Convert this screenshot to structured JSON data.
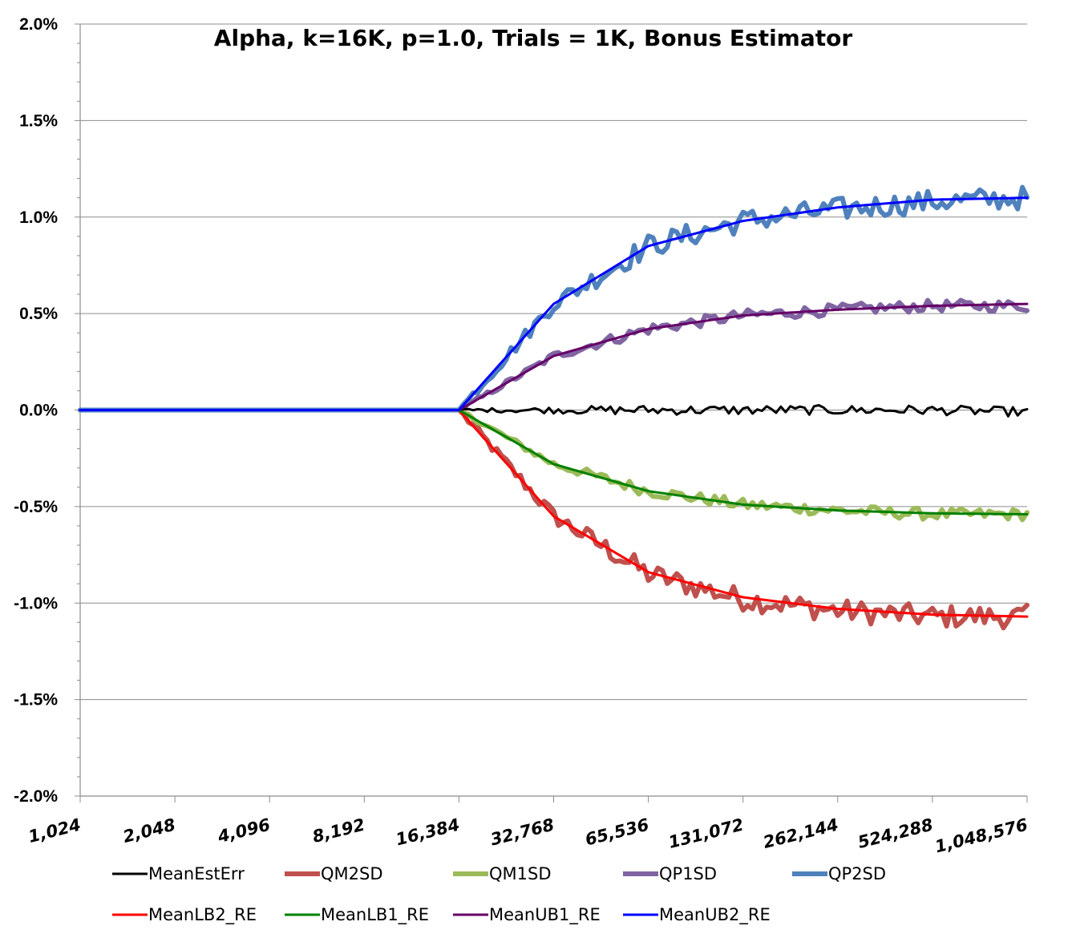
{
  "chart_data": {
    "type": "line",
    "title": "Alpha, k=16K, p=1.0, Trials = 1K, Bonus Estimator",
    "xlabel": "",
    "ylabel": "",
    "x_scale": "log2",
    "x_ticks": [
      1024,
      2048,
      4096,
      8192,
      16384,
      32768,
      65536,
      131072,
      262144,
      524288,
      1048576
    ],
    "x_tick_labels": [
      "1,024",
      "2,048",
      "4,096",
      "8,192",
      "16,384",
      "32,768",
      "65,536",
      "131,072",
      "262,144",
      "524,288",
      "1,048,576"
    ],
    "xlim": [
      1024,
      1048576
    ],
    "y_ticks": [
      2.0,
      1.5,
      1.0,
      0.5,
      0.0,
      -0.5,
      -1.0,
      -1.5,
      -2.0
    ],
    "y_tick_labels": [
      "2.0%",
      "1.5%",
      "1.0%",
      "0.5%",
      "0.0%",
      "-0.5%",
      "-1.0%",
      "-1.5%",
      "-2.0%"
    ],
    "ylim": [
      -2.0,
      2.0
    ],
    "y_unit": "%",
    "grid": "horizontal",
    "legend_position": "bottom",
    "series": [
      {
        "name": "MeanEstErr",
        "color": "#000000",
        "style": "thin",
        "x": [
          1024,
          16384,
          32768,
          65536,
          131072,
          262144,
          524288,
          1048576
        ],
        "y": [
          0.0,
          0.0,
          0.0,
          0.0,
          0.0,
          0.0,
          0.0,
          -0.01
        ],
        "noise": 0.025
      },
      {
        "name": "QM2SD",
        "color": "#c0504d",
        "style": "thick",
        "x": [
          1024,
          16384,
          32768,
          65536,
          131072,
          262144,
          524288,
          1048576
        ],
        "y": [
          0.0,
          0.0,
          -0.55,
          -0.85,
          -0.98,
          -1.04,
          -1.07,
          -1.07
        ],
        "noise": 0.06
      },
      {
        "name": "QM1SD",
        "color": "#9bbb59",
        "style": "thick",
        "x": [
          1024,
          16384,
          32768,
          65536,
          131072,
          262144,
          524288,
          1048576
        ],
        "y": [
          0.0,
          0.0,
          -0.28,
          -0.42,
          -0.49,
          -0.52,
          -0.54,
          -0.54
        ],
        "noise": 0.03
      },
      {
        "name": "QP1SD",
        "color": "#8064a2",
        "style": "thick",
        "x": [
          1024,
          16384,
          32768,
          65536,
          131072,
          262144,
          524288,
          1048576
        ],
        "y": [
          0.0,
          0.0,
          0.28,
          0.42,
          0.49,
          0.52,
          0.54,
          0.54
        ],
        "noise": 0.03
      },
      {
        "name": "QP2SD",
        "color": "#4f81bd",
        "style": "thick",
        "x": [
          1024,
          16384,
          32768,
          65536,
          131072,
          262144,
          524288,
          1048576
        ],
        "y": [
          0.0,
          0.0,
          0.55,
          0.85,
          0.98,
          1.04,
          1.08,
          1.1
        ],
        "noise": 0.06
      },
      {
        "name": "MeanLB2_RE",
        "color": "#ff0000",
        "style": "thin-smooth",
        "x": [
          1024,
          16384,
          32768,
          65536,
          131072,
          262144,
          524288,
          1048576
        ],
        "y": [
          0.0,
          0.0,
          -0.55,
          -0.84,
          -0.97,
          -1.03,
          -1.06,
          -1.07
        ]
      },
      {
        "name": "MeanLB1_RE",
        "color": "#008000",
        "style": "thin-smooth",
        "x": [
          1024,
          16384,
          32768,
          65536,
          131072,
          262144,
          524288,
          1048576
        ],
        "y": [
          0.0,
          0.0,
          -0.28,
          -0.42,
          -0.49,
          -0.52,
          -0.535,
          -0.54
        ]
      },
      {
        "name": "MeanUB1_RE",
        "color": "#660066",
        "style": "thin-smooth",
        "x": [
          1024,
          16384,
          32768,
          65536,
          131072,
          262144,
          524288,
          1048576
        ],
        "y": [
          0.0,
          0.0,
          0.28,
          0.42,
          0.49,
          0.52,
          0.54,
          0.55
        ]
      },
      {
        "name": "MeanUB2_RE",
        "color": "#0000ff",
        "style": "thin-smooth",
        "x": [
          1024,
          16384,
          32768,
          65536,
          131072,
          262144,
          524288,
          1048576
        ],
        "y": [
          0.0,
          0.0,
          0.55,
          0.85,
          0.98,
          1.05,
          1.09,
          1.1
        ]
      }
    ]
  }
}
